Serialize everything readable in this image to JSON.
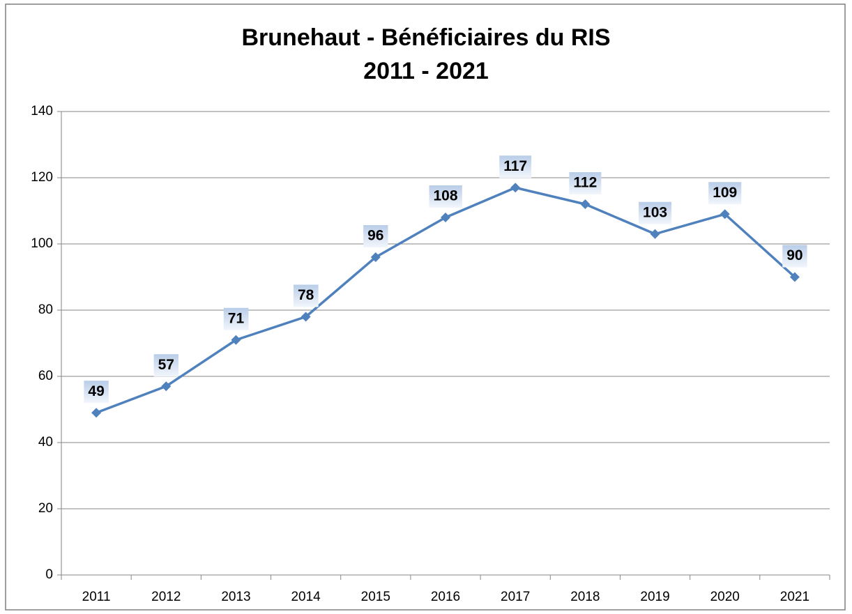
{
  "chart_data": {
    "type": "line",
    "title": "Brunehaut - Bénéficiaires du RIS",
    "subtitle": "2011 - 2021",
    "categories": [
      "2011",
      "2012",
      "2013",
      "2014",
      "2015",
      "2016",
      "2017",
      "2018",
      "2019",
      "2020",
      "2021"
    ],
    "series": [
      {
        "name": "Bénéficiaires du RIS",
        "color": "#4f81bd",
        "values": [
          49,
          57,
          71,
          78,
          96,
          108,
          117,
          112,
          103,
          109,
          90
        ]
      }
    ],
    "ylim": [
      0,
      140
    ],
    "yticks": [
      0,
      20,
      40,
      60,
      80,
      100,
      120,
      140
    ],
    "grid": true,
    "legend": false
  }
}
